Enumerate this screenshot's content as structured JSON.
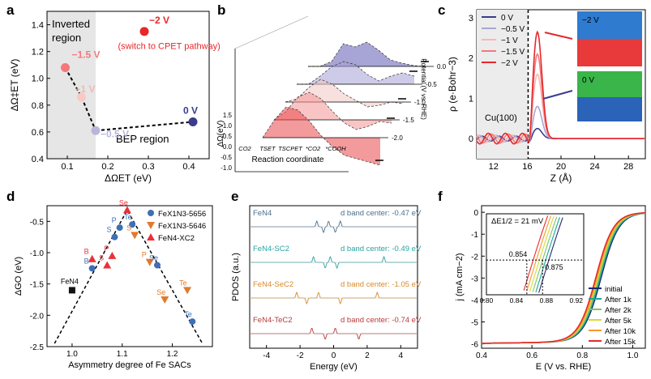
{
  "figure": "Six-panel scientific figure: electrochemical reaction energetics and catalyst descriptors",
  "chart_data": [
    {
      "panel": "a",
      "type": "scatter",
      "xlabel": "ΔΩET (eV)",
      "ylabel": "ΔΩ‡ET (eV)",
      "xlim": [
        0.05,
        0.45
      ],
      "ylim": [
        0.4,
        1.5
      ],
      "xticks": [
        "0.1",
        "0.2",
        "0.3",
        "0.4"
      ],
      "yticks": [
        "0.4",
        "0.6",
        "0.8",
        "1.0",
        "1.2",
        "1.4"
      ],
      "inverted_region_label": [
        "Inverted",
        "region"
      ],
      "bep_region_label": "BEP region",
      "cpet_note": "(switch to CPET pathway)",
      "inverted_xrange": [
        0.05,
        0.17
      ],
      "points": [
        {
          "label": "−1.5 V",
          "x": 0.095,
          "y": 1.08,
          "color": "#f5777a"
        },
        {
          "label": "−1 V",
          "x": 0.135,
          "y": 0.86,
          "color": "#f9c9c4"
        },
        {
          "label": "−0.5 V",
          "x": 0.17,
          "y": 0.61,
          "color": "#b9b6dc"
        },
        {
          "label": "0 V",
          "x": 0.41,
          "y": 0.675,
          "color": "#3a3c8c"
        },
        {
          "label": "−2 V",
          "x": 0.29,
          "y": 1.35,
          "color": "#e8272b"
        }
      ]
    },
    {
      "panel": "b",
      "type": "area",
      "xlabel": "Reaction coordinate",
      "ylabel": "ΔΩ(eV)",
      "zlabel": "Potential (V vs. RHE)",
      "yticks": [
        "1.5",
        "1.0",
        "0.5",
        "0.0",
        "-0.5",
        "-1.0"
      ],
      "categories": [
        "CO2",
        "TSET",
        "TSCPET",
        "*CO2",
        "*COOH"
      ],
      "series": [
        {
          "name": "0.0",
          "color": "#5d5bb5"
        },
        {
          "name": "-0.5",
          "color": "#a4a0d6"
        },
        {
          "name": "-1.0",
          "color": "#f3c7c4"
        },
        {
          "name": "-1.5",
          "color": "#f49693"
        },
        {
          "name": "-2.0",
          "color": "#e9474b"
        }
      ]
    },
    {
      "panel": "c",
      "type": "line",
      "xlabel": "Z (Å)",
      "ylabel": "ρ (e·Bohr−3)",
      "xlim": [
        10,
        30
      ],
      "ylim": [
        -0.5,
        3.2
      ],
      "xticks": [
        "12",
        "16",
        "20",
        "24",
        "28"
      ],
      "yticks": [
        "0",
        "1",
        "2",
        "3"
      ],
      "surface_label": "Cu(100)",
      "surface_position": 16.1,
      "inset_labels": [
        "−2 V",
        "0 V"
      ],
      "series": [
        {
          "name": "0 V",
          "color": "#3a3c8c",
          "peak": 0.25
        },
        {
          "name": "−0.5 V",
          "color": "#a9a6d6",
          "peak": 0.8
        },
        {
          "name": "−1 V",
          "color": "#f9b7b2",
          "peak": 1.6
        },
        {
          "name": "−1.5 V",
          "color": "#f2797a",
          "peak": 2.1
        },
        {
          "name": "−2 V",
          "color": "#e8272b",
          "peak": 2.65
        }
      ]
    },
    {
      "panel": "d",
      "type": "scatter",
      "xlabel": "Asymmetry degree of Fe SACs",
      "ylabel": "ΔGO (eV)",
      "xlim": [
        0.95,
        1.28
      ],
      "ylim": [
        -2.5,
        -0.25
      ],
      "xticks": [
        "1.0",
        "1.1",
        "1.2"
      ],
      "yticks": [
        "-0.5",
        "-1.0",
        "-1.5",
        "-2.0",
        "-2.5"
      ],
      "legend": [
        {
          "label": "FeX1N3-5656",
          "marker": "circle",
          "color": "#3f6fb4"
        },
        {
          "label": "FeX1N3-5646",
          "marker": "triangle-down",
          "color": "#e07a2e"
        },
        {
          "label": "FeN4-XC2",
          "marker": "triangle-up",
          "color": "#e8323a"
        }
      ],
      "points": [
        {
          "label": "FeN4",
          "x": 1.0,
          "y": -1.6,
          "color": "#111111",
          "marker": "square"
        },
        {
          "label": "B",
          "x": 1.04,
          "y": -1.1,
          "color": "#e8323a",
          "marker": "triangle-up"
        },
        {
          "label": "B",
          "x": 1.04,
          "y": -1.25,
          "color": "#3f6fb4",
          "marker": "circle"
        },
        {
          "label": "P",
          "x": 1.08,
          "y": -1.05,
          "color": "#e8323a",
          "marker": "triangle-up"
        },
        {
          "label": "S",
          "x": 1.07,
          "y": -1.2,
          "color": "#e8323a",
          "marker": "triangle-up"
        },
        {
          "label": "P",
          "x": 1.095,
          "y": -0.6,
          "color": "#3f6fb4",
          "marker": "circle"
        },
        {
          "label": "S",
          "x": 1.085,
          "y": -0.75,
          "color": "#3f6fb4",
          "marker": "circle"
        },
        {
          "label": "Se",
          "x": 1.11,
          "y": -0.32,
          "color": "#e8323a",
          "marker": "triangle-up"
        },
        {
          "label": "Te",
          "x": 1.12,
          "y": -0.55,
          "color": "#3f6fb4",
          "marker": "circle"
        },
        {
          "label": "S",
          "x": 1.125,
          "y": -0.72,
          "color": "#e07a2e",
          "marker": "triangle-down"
        },
        {
          "label": "P",
          "x": 1.155,
          "y": -1.15,
          "color": "#e07a2e",
          "marker": "triangle-down"
        },
        {
          "label": "Se",
          "x": 1.17,
          "y": -1.2,
          "color": "#3f6fb4",
          "marker": "circle"
        },
        {
          "label": "Se",
          "x": 1.185,
          "y": -1.75,
          "color": "#e07a2e",
          "marker": "triangle-down"
        },
        {
          "label": "Te",
          "x": 1.23,
          "y": -1.6,
          "color": "#e07a2e",
          "marker": "triangle-down"
        },
        {
          "label": "Te",
          "x": 1.24,
          "y": -2.1,
          "color": "#3f6fb4",
          "marker": "circle"
        }
      ],
      "volcano": [
        [
          0.965,
          -2.45
        ],
        [
          1.11,
          -0.32
        ],
        [
          1.26,
          -2.45
        ]
      ]
    },
    {
      "panel": "e",
      "type": "line",
      "xlabel": "Energy (eV)",
      "ylabel": "PDOS (a.u.)",
      "xlim": [
        -5,
        5
      ],
      "xticks": [
        "-4",
        "-2",
        "0",
        "2",
        "4"
      ],
      "series": [
        {
          "name": "FeN4",
          "color": "#4a6f8f",
          "note": "d band center: -0.47 eV"
        },
        {
          "name": "FeN4-SC2",
          "color": "#2aa3a3",
          "note": "d band center: -0.49 eV"
        },
        {
          "name": "FeN4-SeC2",
          "color": "#d98a2b",
          "note": "d band center: -1.05 eV"
        },
        {
          "name": "FeN4-TeC2",
          "color": "#b83a3a",
          "note": "d band center: -0.74 eV"
        }
      ]
    },
    {
      "panel": "f",
      "type": "line",
      "xlabel": "E (V vs. RHE)",
      "ylabel": "j (mA cm−2)",
      "xlim": [
        0.4,
        1.05
      ],
      "ylim": [
        -6.2,
        0.3
      ],
      "xticks": [
        "0.4",
        "0.6",
        "0.8",
        "1.0"
      ],
      "yticks": [
        "0",
        "-1",
        "-2",
        "-3",
        "-4",
        "-5",
        "-6"
      ],
      "inset": {
        "title": "ΔE1/2 = 21 mV",
        "xticks": [
          "0.80",
          "0.84",
          "0.88",
          "0.92"
        ],
        "annotations": [
          "0.854",
          "0.875"
        ]
      },
      "series": [
        {
          "name": "initial",
          "color": "#1f2a6b",
          "half_wave": 0.875
        },
        {
          "name": "After 1k",
          "color": "#1aa69a"
        },
        {
          "name": "After 2k",
          "color": "#7fc36a"
        },
        {
          "name": "After 5k",
          "color": "#d9d93a"
        },
        {
          "name": "After 10k",
          "color": "#f59a2b"
        },
        {
          "name": "After 15k",
          "color": "#e8272b",
          "half_wave": 0.854
        }
      ]
    }
  ],
  "panel_letters": [
    "a",
    "b",
    "c",
    "d",
    "e",
    "f"
  ]
}
